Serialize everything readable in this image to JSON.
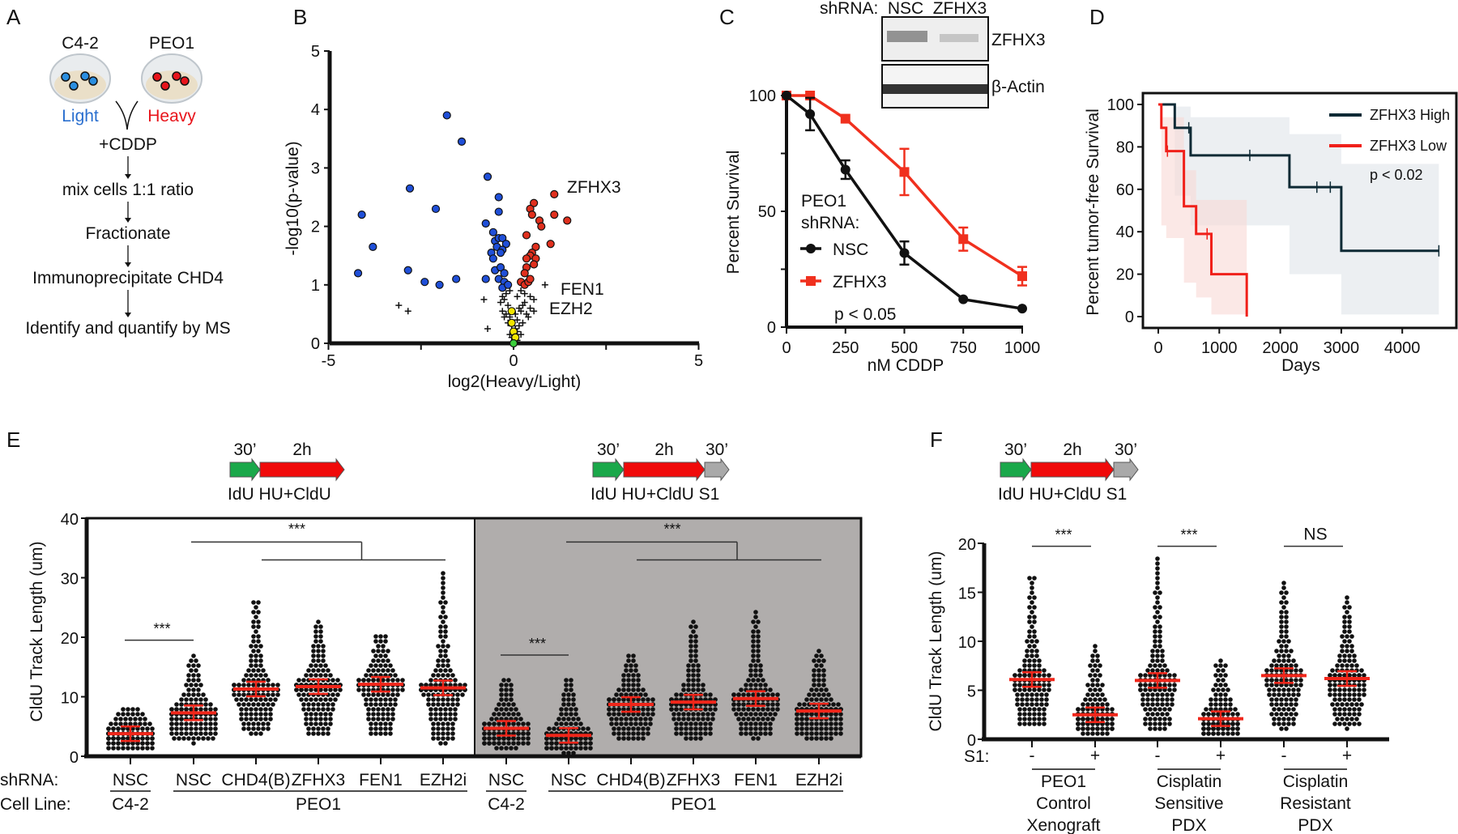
{
  "panel_labels": [
    "A",
    "B",
    "C",
    "D",
    "E",
    "F"
  ],
  "panelA": {
    "cell_lines": [
      "C4-2",
      "PEO1"
    ],
    "labels": [
      "Light",
      "Heavy"
    ],
    "label_colors": [
      "#2a6fcf",
      "#e8141b"
    ],
    "steps": [
      "+CDDP",
      "mix cells 1:1 ratio",
      "Fractionate",
      "Immunoprecipitate CHD4",
      "Identify and quantify by MS"
    ]
  },
  "chart_data": [
    {
      "panel": "B",
      "type": "scatter",
      "xlabel": "log2(Heavy/Light)",
      "ylabel": "-log10(p-value)",
      "xlim": [
        -5,
        5
      ],
      "ylim": [
        0,
        5
      ],
      "xticks": [
        "-5",
        "0",
        "5"
      ],
      "yticks": [
        "0",
        "1",
        "2",
        "3",
        "4",
        "5"
      ],
      "annotations": [
        {
          "text": "ZFHX3",
          "x": 1.15,
          "y": 2.55
        },
        {
          "text": "FEN1",
          "x": 0.85,
          "y": 1.0
        },
        {
          "text": "EZH2",
          "x": 0.55,
          "y": 0.55
        }
      ],
      "series": [
        {
          "color": "#1f4fd8",
          "marker": "circle",
          "points": [
            [
              -1.8,
              3.9
            ],
            [
              -1.4,
              3.45
            ],
            [
              -0.7,
              2.85
            ],
            [
              -2.8,
              2.65
            ],
            [
              -0.4,
              2.5
            ],
            [
              -2.1,
              2.3
            ],
            [
              -0.4,
              2.25
            ],
            [
              -4.1,
              2.2
            ],
            [
              -0.75,
              2.05
            ],
            [
              -3.8,
              1.65
            ],
            [
              -4.2,
              1.2
            ],
            [
              -2.85,
              1.25
            ],
            [
              -2.4,
              1.05
            ],
            [
              -2.0,
              1.0
            ],
            [
              -1.55,
              1.1
            ],
            [
              -0.75,
              1.1
            ],
            [
              -0.55,
              1.9
            ],
            [
              -0.5,
              1.75
            ],
            [
              -0.4,
              1.8
            ],
            [
              -0.3,
              1.8
            ],
            [
              -0.2,
              1.7
            ],
            [
              -0.45,
              1.65
            ],
            [
              -0.3,
              1.6
            ],
            [
              -0.6,
              1.55
            ],
            [
              -0.35,
              1.55
            ],
            [
              -0.55,
              1.45
            ],
            [
              -0.5,
              1.25
            ],
            [
              -0.35,
              1.3
            ],
            [
              -0.25,
              1.2
            ],
            [
              -0.4,
              1.1
            ],
            [
              -0.25,
              1.05
            ],
            [
              -0.3,
              0.95
            ],
            [
              -0.15,
              1.0
            ]
          ]
        },
        {
          "color": "#e0301e",
          "marker": "circle",
          "points": [
            [
              1.1,
              2.55
            ],
            [
              0.55,
              2.4
            ],
            [
              0.45,
              2.3
            ],
            [
              0.5,
              2.2
            ],
            [
              1.1,
              2.2
            ],
            [
              1.45,
              2.1
            ],
            [
              0.7,
              2.1
            ],
            [
              0.75,
              2.0
            ],
            [
              0.35,
              1.85
            ],
            [
              1.0,
              1.7
            ],
            [
              0.6,
              1.65
            ],
            [
              0.5,
              1.55
            ],
            [
              0.45,
              1.5
            ],
            [
              0.6,
              1.45
            ],
            [
              0.35,
              1.45
            ],
            [
              0.55,
              1.35
            ],
            [
              0.35,
              1.3
            ],
            [
              0.3,
              1.2
            ],
            [
              0.2,
              1.05
            ],
            [
              0.3,
              1.0
            ],
            [
              0.4,
              1.05
            ],
            [
              0.45,
              1.1
            ]
          ]
        },
        {
          "color": "#111111",
          "marker": "cross",
          "points": [
            [
              -3.1,
              0.65
            ],
            [
              -2.85,
              0.55
            ],
            [
              -0.8,
              0.75
            ],
            [
              -0.7,
              0.25
            ],
            [
              0.85,
              1.0
            ],
            [
              0.55,
              0.55
            ],
            [
              0.45,
              0.6
            ],
            [
              0.55,
              0.75
            ],
            [
              0.45,
              0.8
            ],
            [
              0.3,
              0.85
            ],
            [
              0.2,
              0.9
            ],
            [
              0.1,
              0.8
            ],
            [
              -0.1,
              0.9
            ],
            [
              -0.2,
              0.85
            ],
            [
              -0.3,
              0.8
            ],
            [
              -0.35,
              0.7
            ],
            [
              -0.25,
              0.75
            ],
            [
              -0.15,
              0.65
            ],
            [
              -0.3,
              0.55
            ],
            [
              -0.2,
              0.5
            ],
            [
              -0.1,
              0.45
            ],
            [
              0.1,
              0.4
            ],
            [
              0.2,
              0.55
            ],
            [
              0.25,
              0.65
            ],
            [
              0.3,
              0.7
            ],
            [
              0.15,
              0.6
            ],
            [
              0.35,
              0.5
            ],
            [
              0.4,
              0.45
            ],
            [
              -0.05,
              0.3
            ],
            [
              0.05,
              0.25
            ],
            [
              0.1,
              0.2
            ],
            [
              -0.1,
              0.15
            ],
            [
              0.15,
              0.3
            ],
            [
              -0.15,
              0.35
            ],
            [
              -0.25,
              0.45
            ],
            [
              0.05,
              0.5
            ],
            [
              0.25,
              0.35
            ],
            [
              0.2,
              0.15
            ],
            [
              -0.05,
              0.1
            ],
            [
              0.1,
              0.05
            ]
          ]
        },
        {
          "color": "#f2e600",
          "marker": "circle",
          "points": [
            [
              -0.05,
              0.55
            ],
            [
              -0.05,
              0.35
            ],
            [
              0.0,
              0.2
            ],
            [
              0.05,
              0.1
            ]
          ]
        },
        {
          "color": "#3ccf3c",
          "marker": "circle",
          "points": [
            [
              0.0,
              0.0
            ]
          ]
        }
      ]
    },
    {
      "panel": "C",
      "type": "line",
      "xlabel": "nM CDDP",
      "ylabel": "Percent Survival",
      "x": [
        0,
        100,
        250,
        500,
        750,
        1000
      ],
      "xticks": [
        "0",
        "250",
        "500",
        "750",
        "1000"
      ],
      "yticks": [
        "0",
        "50",
        "100"
      ],
      "xlim": [
        0,
        1000
      ],
      "ylim": [
        0,
        100
      ],
      "legend_title": [
        "PEO1",
        "shRNA:"
      ],
      "pvalue": "p < 0.05",
      "series": [
        {
          "name": "NSC",
          "color": "#111111",
          "marker": "circle",
          "values": [
            100,
            92,
            68,
            32,
            12,
            8
          ],
          "errors": [
            0,
            7,
            4,
            5,
            0,
            0
          ]
        },
        {
          "name": "ZFHX3",
          "color": "#f0301e",
          "marker": "square",
          "values": [
            100,
            100,
            90,
            67,
            38,
            22
          ],
          "errors": [
            0,
            0,
            0,
            10,
            5,
            4
          ]
        }
      ],
      "blot": {
        "header": "shRNA:",
        "lanes": [
          "NSC",
          "ZFHX3"
        ],
        "bands": [
          "ZFHX3",
          "β-Actin"
        ]
      }
    },
    {
      "panel": "D",
      "type": "line",
      "subtype": "kaplan-meier",
      "xlabel": "Days",
      "ylabel": "Percent tumor-free Survival",
      "xticks": [
        "0",
        "1000",
        "2000",
        "3000",
        "4000"
      ],
      "yticks": [
        "0",
        "20",
        "40",
        "60",
        "80",
        "100"
      ],
      "xlim": [
        0,
        4600
      ],
      "ylim": [
        0,
        100
      ],
      "pvalue": "p < 0.02",
      "legend_position": "top-right",
      "series": [
        {
          "name": "ZFHX3 High",
          "color": "#0e2a35",
          "steps_x": [
            0,
            270,
            530,
            2150,
            3000,
            4600
          ],
          "steps_y": [
            100,
            89,
            76,
            61,
            31,
            31
          ],
          "censored": [
            [
              500,
              89
            ],
            [
              1500,
              76
            ],
            [
              2600,
              61
            ],
            [
              2820,
              61
            ],
            [
              4600,
              31
            ]
          ],
          "ci_upper": [
            100,
            99,
            94,
            86,
            72
          ],
          "ci_lower": [
            100,
            57,
            43,
            20,
            1
          ],
          "band_color": "#dfe5ea"
        },
        {
          "name": "ZFHX3 Low",
          "color": "#f0201a",
          "steps_x": [
            0,
            50,
            130,
            420,
            620,
            870,
            1450
          ],
          "steps_y": [
            100,
            89,
            78,
            52,
            39,
            20,
            0
          ],
          "censored": [
            [
              150,
              78
            ],
            [
              800,
              39
            ]
          ],
          "ci_upper": [
            100,
            94,
            94,
            69,
            55,
            55
          ],
          "ci_lower": [
            100,
            43,
            37,
            16,
            9,
            1
          ],
          "band_color": "#f9d9d6"
        }
      ]
    },
    {
      "panel": "E",
      "type": "scatter",
      "subtype": "dot-plot",
      "ylabel": "CldU Track Length (um)",
      "ylim": [
        0,
        40
      ],
      "yticks": [
        "0",
        "10",
        "20",
        "30",
        "40"
      ],
      "row_labels": [
        "shRNA:",
        "Cell Line:"
      ],
      "protocols": [
        {
          "times": [
            "30’",
            "2h"
          ],
          "agents": "IdU HU+CldU"
        },
        {
          "times": [
            "30’",
            "2h",
            "30’"
          ],
          "agents": "IdU HU+CldU S1"
        }
      ],
      "sections": [
        {
          "background": "#ffffff",
          "groups": [
            {
              "shRNA": "NSC",
              "mean": 3.8,
              "min": 1.3,
              "max": 8.2
            },
            {
              "shRNA": "NSC",
              "mean": 7.3,
              "min": 2.5,
              "max": 16.8
            },
            {
              "shRNA": "CHD4(B)",
              "mean": 11.3,
              "min": 3.8,
              "max": 26.5
            },
            {
              "shRNA": "ZFHX3",
              "mean": 11.7,
              "min": 3.5,
              "max": 22.5
            },
            {
              "shRNA": "FEN1",
              "mean": 12.1,
              "min": 3.5,
              "max": 20.7
            },
            {
              "shRNA": "EZH2i",
              "mean": 11.5,
              "min": 2.2,
              "max": 30.8
            }
          ],
          "cell_lines": [
            "C4-2",
            "PEO1"
          ],
          "significance": [
            {
              "text": "***",
              "y": 19.5
            },
            {
              "text": "***",
              "y": 36
            }
          ]
        },
        {
          "background": "#b0adac",
          "groups": [
            {
              "shRNA": "NSC",
              "mean": 4.7,
              "min": 1.5,
              "max": 13
            },
            {
              "shRNA": "NSC",
              "mean": 3.5,
              "min": 0.8,
              "max": 13
            },
            {
              "shRNA": "CHD4(B)",
              "mean": 8.7,
              "min": 2.7,
              "max": 17
            },
            {
              "shRNA": "ZFHX3",
              "mean": 9.1,
              "min": 2.9,
              "max": 22.8
            },
            {
              "shRNA": "FEN1",
              "mean": 9.7,
              "min": 3.2,
              "max": 24.3
            },
            {
              "shRNA": "EZH2i",
              "mean": 7.6,
              "min": 2.9,
              "max": 17.8
            }
          ],
          "cell_lines": [
            "C4-2",
            "PEO1"
          ],
          "significance": [
            {
              "text": "***",
              "y": 17
            },
            {
              "text": "***",
              "y": 36
            }
          ]
        }
      ]
    },
    {
      "panel": "F",
      "type": "scatter",
      "subtype": "dot-plot",
      "ylabel": "CldU Track Length (um)",
      "ylim": [
        0,
        20
      ],
      "yticks": [
        "0",
        "5",
        "10",
        "15",
        "20"
      ],
      "row_label": "S1:",
      "protocol": {
        "times": [
          "30’",
          "2h",
          "30’"
        ],
        "agents": "IdU HU+CldU S1"
      },
      "pairs": [
        {
          "label": [
            "PEO1",
            "Control",
            "Xenograft"
          ],
          "significance": "***",
          "groups": [
            {
              "s1": "-",
              "mean": 6.1,
              "min": 1.3,
              "max": 16.9
            },
            {
              "s1": "+",
              "mean": 2.5,
              "min": 0.6,
              "max": 9.4
            }
          ]
        },
        {
          "label": [
            "Cisplatin",
            "Sensitive",
            "PDX"
          ],
          "significance": "***",
          "groups": [
            {
              "s1": "-",
              "mean": 6.0,
              "min": 0.9,
              "max": 18.6
            },
            {
              "s1": "+",
              "mean": 2.1,
              "min": 0.5,
              "max": 8.1
            }
          ]
        },
        {
          "label": [
            "Cisplatin",
            "Resistant",
            "PDX"
          ],
          "significance": "NS",
          "groups": [
            {
              "s1": "-",
              "mean": 6.5,
              "min": 1.1,
              "max": 16.0
            },
            {
              "s1": "+",
              "mean": 6.2,
              "min": 1.2,
              "max": 14.4
            }
          ]
        }
      ]
    }
  ],
  "colors": {
    "mean_bar": "#f0261a",
    "idu_arrow": "#1aa84a",
    "cldu_arrow": "#f00a0a",
    "s1_arrow": "#a9a9a9"
  }
}
